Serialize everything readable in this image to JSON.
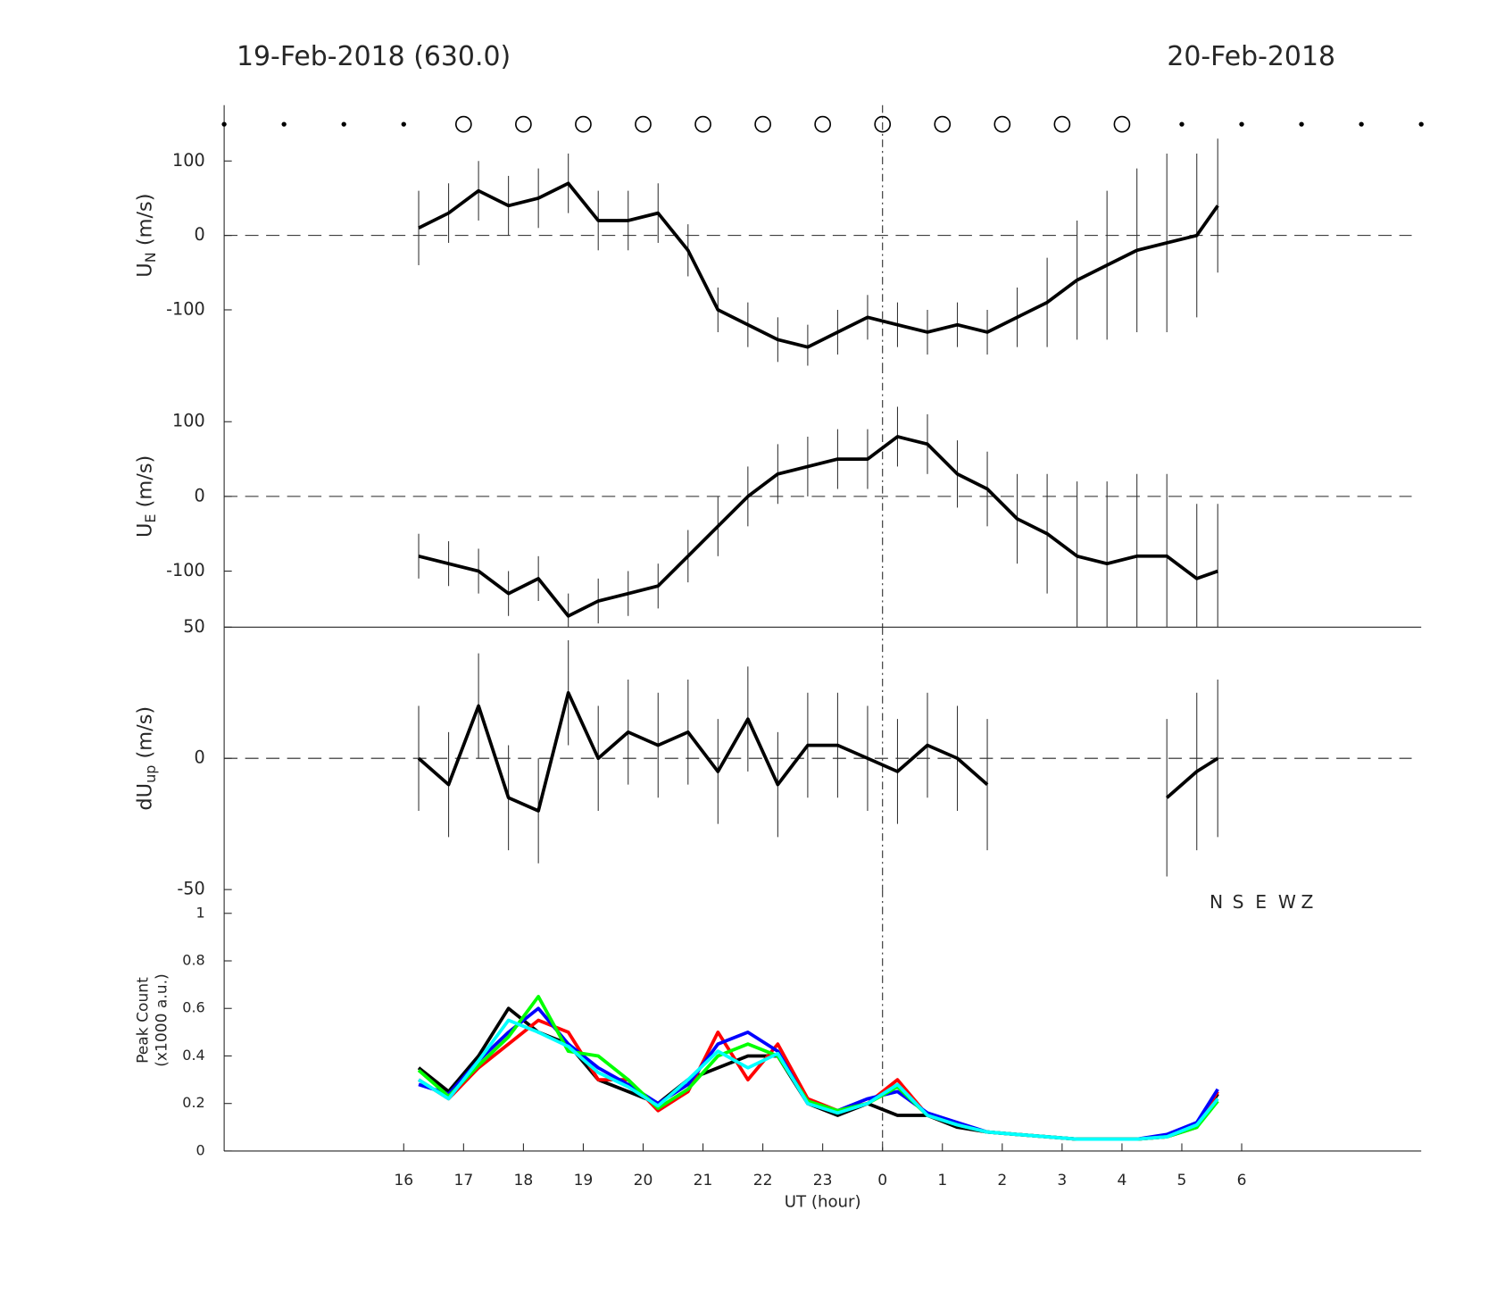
{
  "header": {
    "left": "19-Feb-2018 (630.0)",
    "right": "20-Feb-2018"
  },
  "chart_data": [
    {
      "type": "line",
      "ylabel": [
        "U",
        "N",
        " (m/s)"
      ],
      "x": [
        16.25,
        16.75,
        17.25,
        17.75,
        18.25,
        18.75,
        19.25,
        19.75,
        20.25,
        20.75,
        21.25,
        21.75,
        22.25,
        22.75,
        23.25,
        23.75,
        24.25,
        24.75,
        25.25,
        25.75,
        26.25,
        26.75,
        27.25,
        27.75,
        28.25,
        28.75,
        29.25,
        29.6
      ],
      "values": [
        10,
        30,
        60,
        40,
        50,
        70,
        20,
        20,
        30,
        -20,
        -100,
        -120,
        -140,
        -150,
        -130,
        -110,
        -120,
        -130,
        -120,
        -130,
        -110,
        -90,
        -60,
        -40,
        -20,
        -10,
        0,
        40
      ],
      "errors": [
        50,
        40,
        40,
        40,
        40,
        40,
        40,
        40,
        40,
        35,
        30,
        30,
        30,
        30,
        30,
        30,
        30,
        30,
        30,
        30,
        40,
        60,
        80,
        100,
        110,
        120,
        110,
        90
      ],
      "color": "#000000",
      "xlim": [
        13,
        33
      ],
      "ylim": [
        -175,
        175
      ],
      "yticks": [
        -100,
        0,
        100
      ],
      "zero_line": true,
      "vlines": [
        24
      ],
      "markers": {
        "dots": [
          13,
          14,
          15,
          16,
          29,
          30,
          31,
          32,
          33
        ],
        "circles": [
          17,
          18,
          19,
          20,
          21,
          22,
          23,
          24,
          25,
          26,
          27,
          28
        ]
      }
    },
    {
      "type": "line",
      "ylabel": [
        "U",
        "E",
        " (m/s)"
      ],
      "x": [
        16.25,
        16.75,
        17.25,
        17.75,
        18.25,
        18.75,
        19.25,
        19.75,
        20.25,
        20.75,
        21.25,
        21.75,
        22.25,
        22.75,
        23.25,
        23.75,
        24.25,
        24.75,
        25.25,
        25.75,
        26.25,
        26.75,
        27.25,
        27.75,
        28.25,
        28.75,
        29.25,
        29.6
      ],
      "values": [
        -80,
        -90,
        -100,
        -130,
        -110,
        -160,
        -140,
        -130,
        -120,
        -80,
        -40,
        0,
        30,
        40,
        50,
        50,
        80,
        70,
        30,
        10,
        -30,
        -50,
        -80,
        -90,
        -80,
        -80,
        -110,
        -100
      ],
      "errors": [
        30,
        30,
        30,
        30,
        30,
        30,
        30,
        30,
        30,
        35,
        40,
        40,
        40,
        40,
        40,
        40,
        40,
        40,
        45,
        50,
        60,
        80,
        100,
        110,
        110,
        110,
        100,
        90
      ],
      "color": "#000000",
      "xlim": [
        13,
        33
      ],
      "ylim": [
        -175,
        175
      ],
      "yticks": [
        -100,
        0,
        100
      ],
      "zero_line": true,
      "vlines": [
        24
      ]
    },
    {
      "type": "line",
      "ylabel": [
        "dU",
        "up",
        " (m/s)"
      ],
      "x": [
        16.25,
        16.75,
        17.25,
        17.75,
        18.25,
        18.75,
        19.25,
        19.75,
        20.25,
        20.75,
        21.25,
        21.75,
        22.25,
        22.75,
        23.25,
        23.75,
        24.25,
        24.75,
        25.25,
        25.75,
        26.25,
        26.75,
        27.25,
        27.75,
        28.25,
        28.75,
        29.25,
        29.6
      ],
      "values": [
        0,
        -10,
        20,
        -15,
        -20,
        25,
        0,
        10,
        5,
        10,
        -5,
        15,
        -10,
        5,
        5,
        0,
        -5,
        5,
        0,
        -10,
        null,
        null,
        null,
        null,
        null,
        -15,
        -5,
        0
      ],
      "errors": [
        20,
        20,
        20,
        20,
        20,
        20,
        20,
        20,
        20,
        20,
        20,
        20,
        20,
        20,
        20,
        20,
        20,
        20,
        20,
        25,
        null,
        null,
        null,
        null,
        null,
        30,
        30,
        30
      ],
      "color": "#000000",
      "xlim": [
        13,
        33
      ],
      "ylim": [
        -50,
        50
      ],
      "yticks": [
        -50,
        0,
        50
      ],
      "zero_line": true,
      "vlines": [
        24
      ]
    },
    {
      "type": "line",
      "ylabel": [
        "Peak Count",
        "(x1000 a.u.)"
      ],
      "xlabel": "UT (hour)",
      "x": [
        16.25,
        16.75,
        17.25,
        17.75,
        18.25,
        18.75,
        19.25,
        19.75,
        20.25,
        20.75,
        21.25,
        21.75,
        22.25,
        22.75,
        23.25,
        23.75,
        24.25,
        24.75,
        25.25,
        25.75,
        26.25,
        26.75,
        27.25,
        27.75,
        28.25,
        28.75,
        29.25,
        29.6
      ],
      "series": [
        {
          "name": "N",
          "color": "#000000",
          "values": [
            0.35,
            0.25,
            0.4,
            0.6,
            0.5,
            0.45,
            0.3,
            0.25,
            0.2,
            0.3,
            0.35,
            0.4,
            0.4,
            0.2,
            0.15,
            0.2,
            0.15,
            0.15,
            0.1,
            0.08,
            0.07,
            0.06,
            0.05,
            0.05,
            0.05,
            0.06,
            0.1,
            0.24
          ]
        },
        {
          "name": "S",
          "color": "#ff0000",
          "values": [
            0.3,
            0.22,
            0.35,
            0.45,
            0.55,
            0.5,
            0.3,
            0.3,
            0.17,
            0.25,
            0.5,
            0.3,
            0.45,
            0.22,
            0.17,
            0.2,
            0.3,
            0.15,
            0.11,
            0.08,
            0.07,
            0.06,
            0.05,
            0.05,
            0.05,
            0.06,
            0.11,
            0.25
          ]
        },
        {
          "name": "E",
          "color": "#0000ff",
          "values": [
            0.28,
            0.24,
            0.38,
            0.5,
            0.6,
            0.45,
            0.35,
            0.28,
            0.2,
            0.28,
            0.45,
            0.5,
            0.42,
            0.2,
            0.17,
            0.22,
            0.25,
            0.16,
            0.12,
            0.08,
            0.07,
            0.06,
            0.05,
            0.05,
            0.05,
            0.07,
            0.12,
            0.26
          ]
        },
        {
          "name": "W",
          "color": "#00ff00",
          "values": [
            0.34,
            0.23,
            0.36,
            0.48,
            0.65,
            0.42,
            0.4,
            0.3,
            0.18,
            0.26,
            0.4,
            0.45,
            0.4,
            0.21,
            0.17,
            0.2,
            0.27,
            0.15,
            0.11,
            0.08,
            0.07,
            0.06,
            0.05,
            0.05,
            0.05,
            0.06,
            0.1,
            0.21
          ]
        },
        {
          "name": "Z",
          "color": "#00ffff",
          "values": [
            0.3,
            0.22,
            0.38,
            0.55,
            0.5,
            0.44,
            0.33,
            0.27,
            0.19,
            0.3,
            0.42,
            0.35,
            0.41,
            0.2,
            0.16,
            0.2,
            0.28,
            0.15,
            0.11,
            0.08,
            0.07,
            0.06,
            0.05,
            0.05,
            0.05,
            0.06,
            0.11,
            0.22
          ]
        }
      ],
      "xlim": [
        13,
        33
      ],
      "ylim": [
        0,
        1.1
      ],
      "yticks": [
        0,
        0.2,
        0.4,
        0.6,
        0.8,
        1
      ],
      "vlines": [
        24
      ],
      "xticks": [
        16,
        17,
        18,
        19,
        20,
        21,
        22,
        23,
        {
          "value": 24,
          "label": "0"
        },
        {
          "value": 25,
          "label": "1"
        },
        {
          "value": 26,
          "label": "2"
        },
        {
          "value": 27,
          "label": "3"
        },
        {
          "value": 28,
          "label": "4"
        },
        {
          "value": 29,
          "label": "5"
        },
        {
          "value": 30,
          "label": "6"
        }
      ]
    }
  ]
}
